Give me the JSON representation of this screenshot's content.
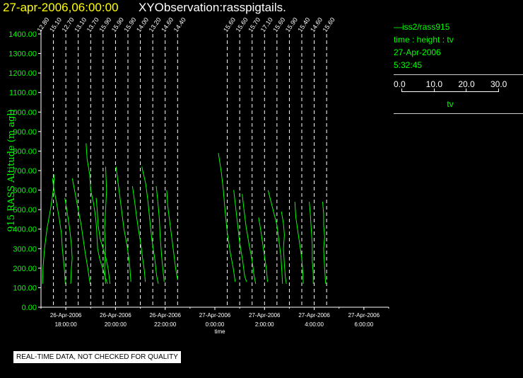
{
  "header": {
    "date_title": "27-apr-2006,06:00:00",
    "obs_title": "XYObservation:rasspigtails."
  },
  "legend": {
    "series_line": "—iss2/rass915",
    "desc": "time : height : tv",
    "date": "27-Apr-2006",
    "time": "5:32:45",
    "scale_ticks": [
      "0.0",
      "10.0",
      "20.0",
      "30.0"
    ],
    "scale_var": "tv"
  },
  "disclaimer": "REAL-TIME DATA, NOT CHECKED FOR QUALITY",
  "colors": {
    "background": "#000000",
    "profile": "#00ff00",
    "axis": "#ffffff",
    "ylabel": "#00ff00",
    "date_title": "#ffff00"
  },
  "chart_data": {
    "type": "line",
    "ylabel": "915 RASS Altitude (m agl)",
    "xlabel": "time",
    "ylim": [
      0,
      1400
    ],
    "yticks": [
      "0.00",
      "100.00",
      "200.00",
      "300.00",
      "400.00",
      "500.00",
      "600.00",
      "700.00",
      "800.00",
      "900.00",
      "1000.00",
      "1100.00",
      "1200.00",
      "1300.00",
      "1400.00"
    ],
    "xlim": [
      "2006-04-26T17:00",
      "2006-04-27T07:00"
    ],
    "xticks": [
      {
        "date": "26-Apr-2006",
        "time": "18:00:00"
      },
      {
        "date": "26-Apr-2006",
        "time": "20:00:00"
      },
      {
        "date": "26-Apr-2006",
        "time": "22:00:00"
      },
      {
        "date": "27-Apr-2006",
        "time": "0:00:00"
      },
      {
        "date": "27-Apr-2006",
        "time": "2:00:00"
      },
      {
        "date": "27-Apr-2006",
        "time": "4:00:00"
      },
      {
        "date": "27-Apr-2006",
        "time": "6:00:00"
      }
    ],
    "series": [
      {
        "name": "iss2/rass915",
        "profiles": [
          {
            "time": "2006-04-26T17:00",
            "label": "12.80",
            "points": [
              [
                6.8,
                680
              ],
              [
                6.2,
                600
              ],
              [
                4.8,
                500
              ],
              [
                3.0,
                400
              ],
              [
                1.8,
                300
              ],
              [
                1.0,
                200
              ],
              [
                0.8,
                120
              ]
            ]
          },
          {
            "time": "2006-04-26T17:30",
            "label": "15.10",
            "points": [
              [
                -0.5,
                660
              ],
              [
                0.3,
                600
              ],
              [
                1.5,
                540
              ],
              [
                3.0,
                450
              ],
              [
                4.0,
                380
              ],
              [
                4.5,
                300
              ],
              [
                5.5,
                200
              ],
              [
                6.0,
                120
              ]
            ]
          },
          {
            "time": "2006-04-26T18:00",
            "label": "12.70",
            "points": [
              [
                -0.5,
                560
              ],
              [
                0.8,
                480
              ],
              [
                2.0,
                400
              ],
              [
                2.8,
                320
              ],
              [
                3.2,
                250
              ],
              [
                2.8,
                200
              ],
              [
                2.5,
                120
              ]
            ]
          },
          {
            "time": "2006-04-26T18:30",
            "label": "13.10",
            "points": [
              [
                -3.0,
                660
              ],
              [
                -1.5,
                580
              ],
              [
                0,
                500
              ],
              [
                1.5,
                420
              ],
              [
                2.5,
                350
              ],
              [
                3.5,
                280
              ],
              [
                4.8,
                200
              ],
              [
                6.0,
                120
              ]
            ]
          },
          {
            "time": "2006-04-26T19:00",
            "label": "13.70",
            "points": [
              [
                -2.3,
                840
              ],
              [
                -1.8,
                760
              ],
              [
                -0.5,
                680
              ],
              [
                0,
                600
              ],
              [
                1.5,
                530
              ],
              [
                2.5,
                460
              ],
              [
                3.0,
                400
              ],
              [
                3.5,
                300
              ],
              [
                4.5,
                250
              ],
              [
                6.0,
                200
              ],
              [
                7.5,
                150
              ],
              [
                8.5,
                120
              ]
            ]
          },
          {
            "time": "2006-04-26T19:30",
            "label": "15.90",
            "points": [
              [
                -3.5,
                560
              ],
              [
                -3.0,
                500
              ],
              [
                -2.5,
                420
              ],
              [
                -1.5,
                350
              ],
              [
                0,
                300
              ],
              [
                1.5,
                250
              ],
              [
                2.5,
                200
              ],
              [
                3.5,
                120
              ]
            ]
          },
          {
            "time": "2006-04-26T20:00",
            "label": "15.90",
            "points": [
              [
                -5.0,
                720
              ],
              [
                -4.5,
                600
              ],
              [
                -5.0,
                500
              ],
              [
                -5.5,
                400
              ],
              [
                -5.0,
                300
              ],
              [
                -5.5,
                200
              ],
              [
                -5.0,
                120
              ]
            ]
          },
          {
            "time": "2006-04-26T20:30",
            "label": "15.90",
            "points": [
              [
                -6.0,
                720
              ],
              [
                -5.0,
                640
              ],
              [
                -4.0,
                560
              ],
              [
                -3.0,
                480
              ],
              [
                -2.0,
                400
              ],
              [
                -0.5,
                320
              ],
              [
                0.5,
                250
              ],
              [
                1.0,
                200
              ],
              [
                1.5,
                130
              ]
            ]
          },
          {
            "time": "2006-04-26T21:00",
            "label": "14.00",
            "points": [
              [
                -4.0,
                620
              ],
              [
                -3.0,
                550
              ],
              [
                -2.0,
                470
              ],
              [
                -1.0,
                400
              ],
              [
                0,
                340
              ],
              [
                1.0,
                260
              ],
              [
                2.0,
                190
              ],
              [
                2.5,
                130
              ]
            ]
          },
          {
            "time": "2006-04-26T21:30",
            "label": "13.20",
            "points": [
              [
                -5.5,
                720
              ],
              [
                -3.5,
                630
              ],
              [
                -2.5,
                550
              ],
              [
                -1.5,
                450
              ],
              [
                -0.5,
                350
              ],
              [
                1.0,
                250
              ],
              [
                2.0,
                160
              ],
              [
                2.8,
                120
              ]
            ]
          },
          {
            "time": "2006-04-26T22:00",
            "label": "14.60",
            "points": [
              [
                -4.5,
                620
              ],
              [
                -3.8,
                550
              ],
              [
                -3.0,
                460
              ],
              [
                -2.5,
                360
              ],
              [
                -1.8,
                260
              ],
              [
                -1.0,
                180
              ],
              [
                -0.5,
                130
              ]
            ]
          },
          {
            "time": "2006-04-26T22:30",
            "label": "14.40",
            "points": [
              [
                -5.5,
                600
              ],
              [
                -5.0,
                520
              ],
              [
                -4.0,
                440
              ],
              [
                -3.0,
                360
              ],
              [
                -2.0,
                280
              ],
              [
                -1.0,
                200
              ],
              [
                0,
                140
              ]
            ]
          },
          {
            "time": "2006-04-27T00:30",
            "label": "15.60",
            "points": [
              [
                -4.5,
                790
              ],
              [
                -3.0,
                690
              ],
              [
                -2.0,
                600
              ],
              [
                -1.0,
                480
              ],
              [
                0,
                380
              ],
              [
                1.5,
                280
              ],
              [
                3.0,
                200
              ],
              [
                4.0,
                130
              ]
            ]
          },
          {
            "time": "2006-04-27T01:00",
            "label": "15.60",
            "points": [
              [
                -3.0,
                600
              ],
              [
                -2.0,
                510
              ],
              [
                -1.0,
                420
              ],
              [
                0,
                330
              ],
              [
                1.5,
                240
              ],
              [
                2.5,
                160
              ],
              [
                3.5,
                130
              ]
            ]
          },
          {
            "time": "2006-04-27T01:30",
            "label": "15.70",
            "points": [
              [
                -5.0,
                580
              ],
              [
                -4.0,
                490
              ],
              [
                -3.0,
                410
              ],
              [
                -1.5,
                320
              ],
              [
                0,
                240
              ],
              [
                1.0,
                160
              ],
              [
                1.8,
                120
              ]
            ]
          },
          {
            "time": "2006-04-27T02:00",
            "label": "17.10",
            "points": [
              [
                -3.0,
                460
              ],
              [
                -2.0,
                400
              ],
              [
                -1.0,
                330
              ],
              [
                0,
                260
              ],
              [
                1.0,
                190
              ],
              [
                1.5,
                130
              ]
            ]
          },
          {
            "time": "2006-04-27T02:30",
            "label": "15.60",
            "points": [
              [
                -4.5,
                600
              ],
              [
                -3.0,
                540
              ],
              [
                -1.5,
                480
              ],
              [
                0,
                420
              ],
              [
                1.0,
                340
              ],
              [
                2.0,
                260
              ],
              [
                2.5,
                180
              ],
              [
                2.8,
                120
              ]
            ]
          },
          {
            "time": "2006-04-27T03:00",
            "label": "15.90",
            "points": [
              [
                -4.0,
                490
              ],
              [
                -3.0,
                430
              ],
              [
                -2.5,
                370
              ],
              [
                -3.0,
                300
              ],
              [
                -2.5,
                220
              ],
              [
                -2.0,
                150
              ],
              [
                -1.5,
                120
              ]
            ]
          },
          {
            "time": "2006-04-27T03:30",
            "label": "15.40",
            "points": [
              [
                -3.5,
                540
              ],
              [
                -3.0,
                460
              ],
              [
                -2.0,
                390
              ],
              [
                -1.0,
                320
              ],
              [
                0,
                250
              ],
              [
                0.5,
                180
              ],
              [
                0.8,
                120
              ]
            ]
          },
          {
            "time": "2006-04-27T04:00",
            "label": "14.60",
            "points": [
              [
                -2.5,
                540
              ],
              [
                -2.0,
                480
              ],
              [
                -1.5,
                400
              ],
              [
                -1.0,
                320
              ],
              [
                -1.0,
                240
              ],
              [
                -0.5,
                170
              ],
              [
                -0.5,
                120
              ]
            ]
          },
          {
            "time": "2006-04-27T04:30",
            "label": "15.60",
            "points": [
              [
                -2.0,
                540
              ],
              [
                -1.5,
                480
              ],
              [
                -1.5,
                420
              ],
              [
                -1.0,
                360
              ],
              [
                -1.5,
                300
              ],
              [
                -1.0,
                200
              ],
              [
                -0.5,
                120
              ]
            ]
          }
        ]
      }
    ],
    "grid": false,
    "legend_position": "top-right"
  }
}
